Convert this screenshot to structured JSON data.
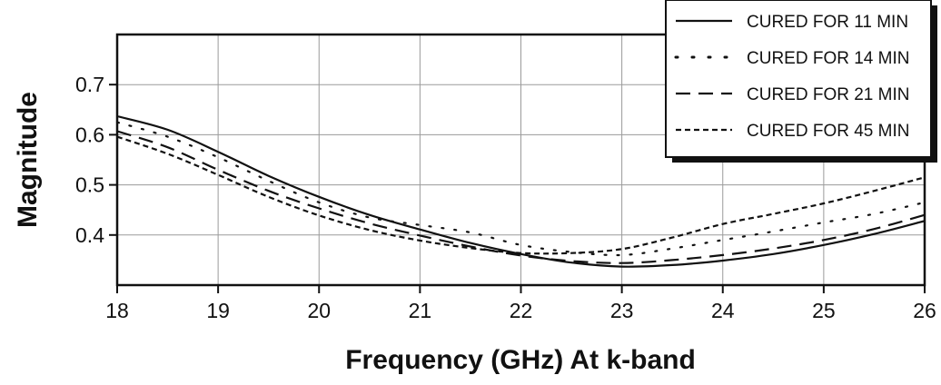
{
  "chart_data": {
    "type": "line",
    "title": "",
    "xlabel": "Frequency (GHz) At k-band",
    "ylabel": "Magnitude",
    "xlim": [
      18,
      26
    ],
    "ylim": [
      0.3,
      0.8
    ],
    "x_ticks": [
      18,
      19,
      20,
      21,
      22,
      23,
      24,
      25,
      26
    ],
    "y_ticks": [
      0.4,
      0.5,
      0.6,
      0.7
    ],
    "y_tick_labels": [
      "0.4",
      "0.5",
      "0.6",
      "0.7"
    ],
    "grid": true,
    "legend_position": "top-right",
    "series": [
      {
        "name": "CURED FOR 11 MIN",
        "style": "solid",
        "x": [
          18,
          18.5,
          19,
          19.5,
          20,
          20.5,
          21,
          21.5,
          22,
          22.5,
          23,
          23.5,
          24,
          24.5,
          25,
          25.5,
          26
        ],
        "y": [
          0.637,
          0.61,
          0.566,
          0.518,
          0.476,
          0.44,
          0.411,
          0.384,
          0.362,
          0.345,
          0.337,
          0.34,
          0.349,
          0.362,
          0.38,
          0.402,
          0.428
        ]
      },
      {
        "name": "CURED FOR 14 MIN",
        "style": "dotted",
        "x": [
          18,
          18.5,
          19,
          19.5,
          20,
          20.5,
          21,
          21.5,
          22,
          22.5,
          23,
          23.5,
          24,
          24.5,
          25,
          25.5,
          26
        ],
        "y": [
          0.625,
          0.596,
          0.555,
          0.508,
          0.465,
          0.435,
          0.42,
          0.405,
          0.38,
          0.366,
          0.36,
          0.373,
          0.39,
          0.407,
          0.425,
          0.442,
          0.465
        ]
      },
      {
        "name": "CURED FOR 21 MIN",
        "style": "dashed",
        "x": [
          18,
          18.5,
          19,
          19.5,
          20,
          20.5,
          21,
          21.5,
          22,
          22.5,
          23,
          23.5,
          24,
          24.5,
          25,
          25.5,
          26
        ],
        "y": [
          0.607,
          0.575,
          0.53,
          0.488,
          0.453,
          0.423,
          0.399,
          0.377,
          0.359,
          0.348,
          0.344,
          0.35,
          0.36,
          0.373,
          0.39,
          0.412,
          0.44
        ]
      },
      {
        "name": "CURED FOR 45 MIN",
        "style": "short-dashed",
        "x": [
          18,
          18.5,
          19,
          19.5,
          20,
          20.5,
          21,
          21.5,
          22,
          22.5,
          23,
          23.5,
          24,
          24.5,
          25,
          25.5,
          26
        ],
        "y": [
          0.596,
          0.562,
          0.52,
          0.476,
          0.439,
          0.41,
          0.389,
          0.374,
          0.364,
          0.364,
          0.372,
          0.395,
          0.422,
          0.442,
          0.463,
          0.488,
          0.515
        ]
      }
    ]
  }
}
